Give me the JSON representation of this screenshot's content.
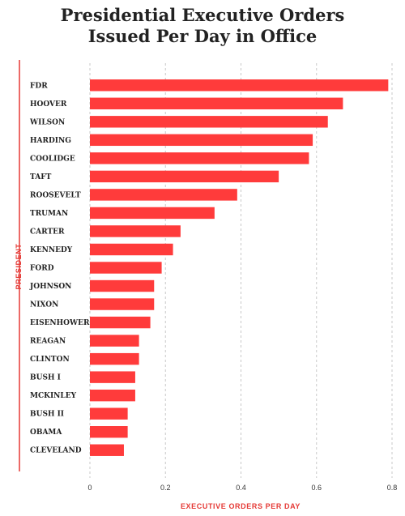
{
  "chart_data": {
    "type": "bar",
    "orientation": "horizontal",
    "title_line1": "Presidential Executive Orders",
    "title_line2": "Issued Per Day in Office",
    "xlabel": "EXECUTIVE ORDERS PER DAY",
    "ylabel": "PRESIDENT",
    "xlim": [
      0,
      0.8
    ],
    "xticks": [
      "0",
      "0.2",
      "0.4",
      "0.6",
      "0.8"
    ],
    "grid": "vertical dashed",
    "bar_color": "#ff3b3b",
    "categories": [
      "FDR",
      "HOOVER",
      "WILSON",
      "HARDING",
      "COOLIDGE",
      "TAFT",
      "ROOSEVELT",
      "TRUMAN",
      "CARTER",
      "KENNEDY",
      "FORD",
      "JOHNSON",
      "NIXON",
      "EISENHOWER",
      "REAGAN",
      "CLINTON",
      "BUSH I",
      "MCKINLEY",
      "BUSH II",
      "OBAMA",
      "CLEVELAND"
    ],
    "values": [
      0.79,
      0.67,
      0.63,
      0.59,
      0.58,
      0.5,
      0.39,
      0.33,
      0.24,
      0.22,
      0.19,
      0.17,
      0.17,
      0.16,
      0.13,
      0.13,
      0.12,
      0.12,
      0.1,
      0.1,
      0.09
    ]
  }
}
